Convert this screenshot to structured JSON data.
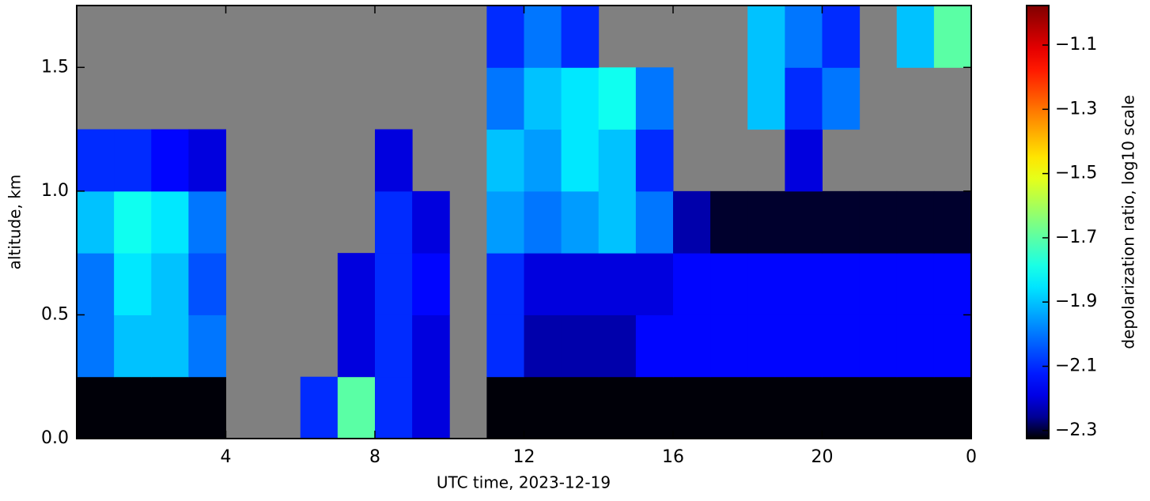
{
  "chart_data": {
    "type": "heatmap",
    "xlabel": "UTC time,  2023-12-19",
    "ylabel": "altitude, km",
    "colorbar_label": "depolarization ratio, log10 scale",
    "xbins": [
      0,
      1,
      2,
      3,
      4,
      5,
      6,
      7,
      8,
      9,
      10,
      11,
      12,
      13,
      14,
      15,
      16,
      17,
      18,
      19,
      20,
      21,
      22,
      23,
      24
    ],
    "ybins": [
      0,
      0.25,
      0.5,
      0.75,
      1,
      1.25,
      1.5,
      1.75
    ],
    "values": [
      [
        -2.32,
        -2.32,
        -2.32,
        -2.32,
        null,
        null,
        -2.1,
        -1.7,
        -2.1,
        -2.2,
        null,
        -2.32,
        -2.32,
        -2.32,
        -2.32,
        -2.32,
        -2.32,
        -2.32,
        -2.32,
        -2.32,
        -2.32,
        -2.32,
        -2.32,
        -2.32
      ],
      [
        -2.0,
        -1.9,
        -1.9,
        -2.0,
        null,
        null,
        null,
        -2.2,
        -2.1,
        -2.2,
        null,
        -2.1,
        -2.25,
        -2.25,
        -2.25,
        -2.15,
        -2.15,
        -2.15,
        -2.15,
        -2.15,
        -2.15,
        -2.15,
        -2.15,
        -2.15
      ],
      [
        -2.0,
        -1.85,
        -1.9,
        -2.05,
        null,
        null,
        null,
        -2.2,
        -2.1,
        -2.15,
        null,
        -2.1,
        -2.2,
        -2.2,
        -2.2,
        -2.2,
        -2.15,
        -2.15,
        -2.15,
        -2.15,
        -2.15,
        -2.15,
        -2.15,
        -2.15
      ],
      [
        -1.9,
        -1.8,
        -1.85,
        -2.0,
        null,
        null,
        null,
        null,
        -2.1,
        -2.2,
        null,
        -1.95,
        -2.0,
        -1.95,
        -1.9,
        -2.0,
        -2.25,
        -2.3,
        -2.3,
        -2.3,
        -2.3,
        -2.3,
        -2.3,
        -2.3
      ],
      [
        -2.1,
        -2.1,
        -2.15,
        -2.2,
        null,
        null,
        null,
        null,
        -2.2,
        null,
        null,
        -1.9,
        -1.95,
        -1.85,
        -1.9,
        -2.1,
        null,
        null,
        null,
        -2.2,
        null,
        null,
        null,
        null
      ],
      [
        null,
        null,
        null,
        null,
        null,
        null,
        null,
        null,
        null,
        null,
        null,
        -2.0,
        -1.9,
        -1.85,
        -1.8,
        -2.0,
        null,
        null,
        -1.9,
        -2.1,
        -2.0,
        null,
        null,
        null
      ],
      [
        null,
        null,
        null,
        null,
        null,
        null,
        null,
        null,
        null,
        null,
        null,
        -2.1,
        -2.0,
        -2.1,
        null,
        null,
        null,
        null,
        -1.9,
        -2.0,
        -2.1,
        null,
        -1.9,
        -1.7
      ]
    ],
    "missing_color": "#808080",
    "colormap": "jet",
    "xlim": [
      0,
      24
    ],
    "xticks": [
      4,
      8,
      12,
      16,
      20,
      {
        "value": 24,
        "label": "0"
      }
    ],
    "ylim": [
      0,
      1.75
    ],
    "yticks": [
      {
        "value": 0,
        "label": "0.0"
      },
      0.5,
      {
        "value": 1,
        "label": "1.0"
      },
      1.5
    ],
    "clim": [
      -2.325,
      -0.977
    ],
    "cticks": [
      {
        "value": -2.3,
        "label": "−2.3"
      },
      {
        "value": -2.1,
        "label": "−2.1"
      },
      {
        "value": -1.9,
        "label": "−1.9"
      },
      {
        "value": -1.7,
        "label": "−1.7"
      },
      {
        "value": -1.5,
        "label": "−1.5"
      },
      {
        "value": -1.3,
        "label": "−1.3"
      },
      {
        "value": -1.1,
        "label": "−1.1"
      }
    ]
  }
}
